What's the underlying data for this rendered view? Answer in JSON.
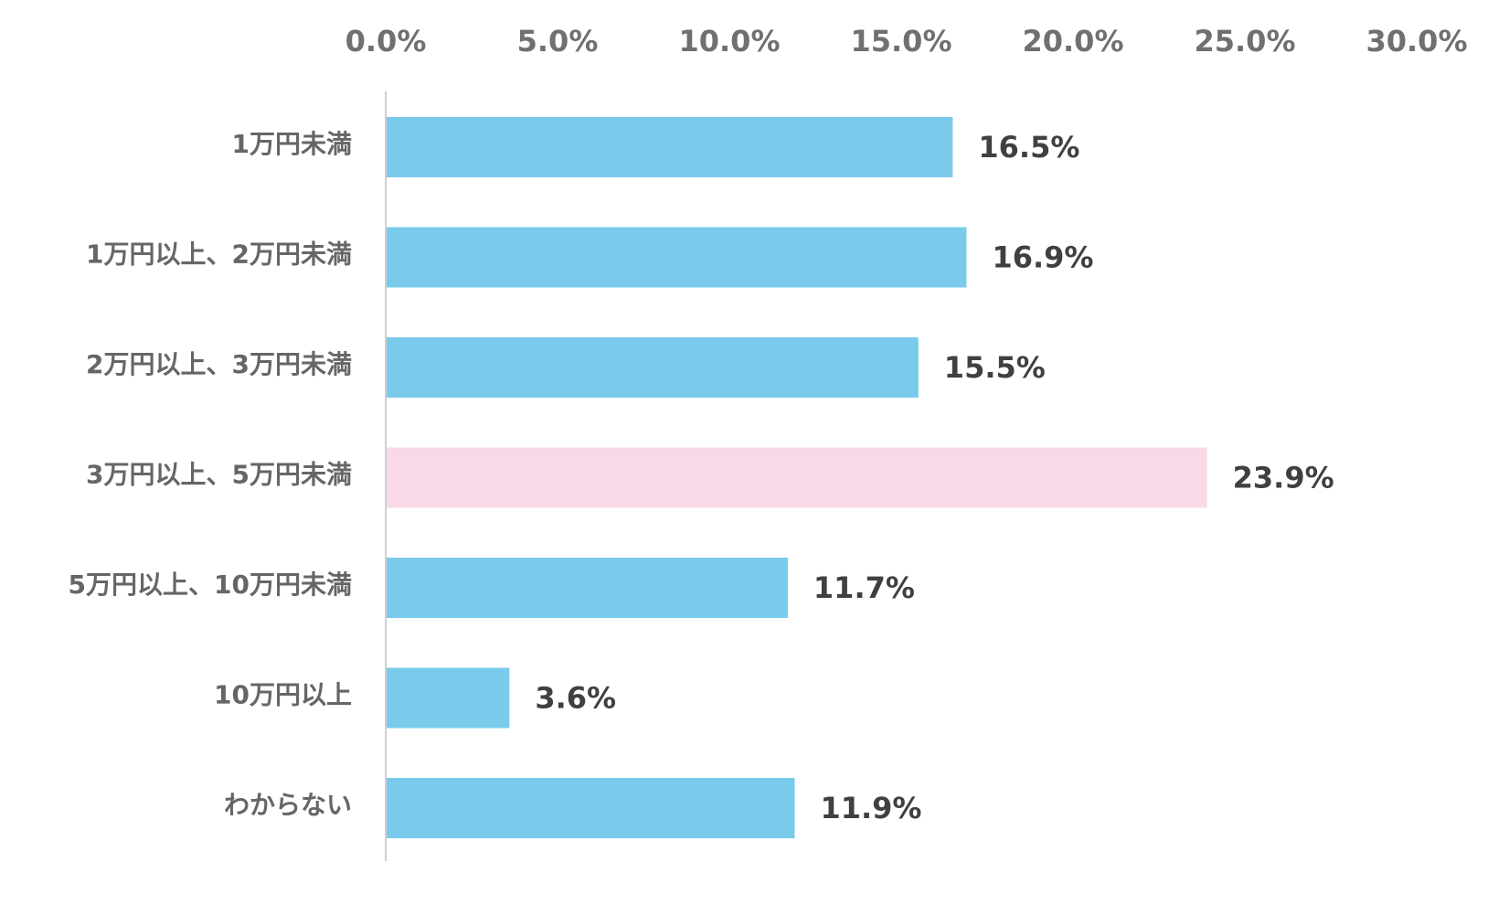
{
  "chart_data": {
    "type": "bar",
    "orientation": "horizontal",
    "categories": [
      "1万円未満",
      "1万円以上、2万円未満",
      "2万円以上、3万円未満",
      "3万円以上、5万円未満",
      "5万円以上、10万円未満",
      "10万円以上",
      "わからない"
    ],
    "values": [
      16.5,
      16.9,
      15.5,
      23.9,
      11.7,
      3.6,
      11.9
    ],
    "data_labels": [
      "16.5%",
      "16.9%",
      "15.5%",
      "23.9%",
      "11.7%",
      "3.6%",
      "11.9%"
    ],
    "x_ticks": [
      0,
      5,
      10,
      15,
      20,
      25,
      30
    ],
    "x_tick_labels": [
      "0.0%",
      "5.0%",
      "10.0%",
      "15.0%",
      "20.0%",
      "25.0%",
      "30.0%"
    ],
    "xlim": [
      0,
      30
    ],
    "x_axis_position": "top",
    "grid": false,
    "legend": "none",
    "colors": {
      "default": "#7ACBEB",
      "highlight": "#F8D9E8",
      "axis": "#D0D0D0"
    },
    "highlight_index": 3
  }
}
